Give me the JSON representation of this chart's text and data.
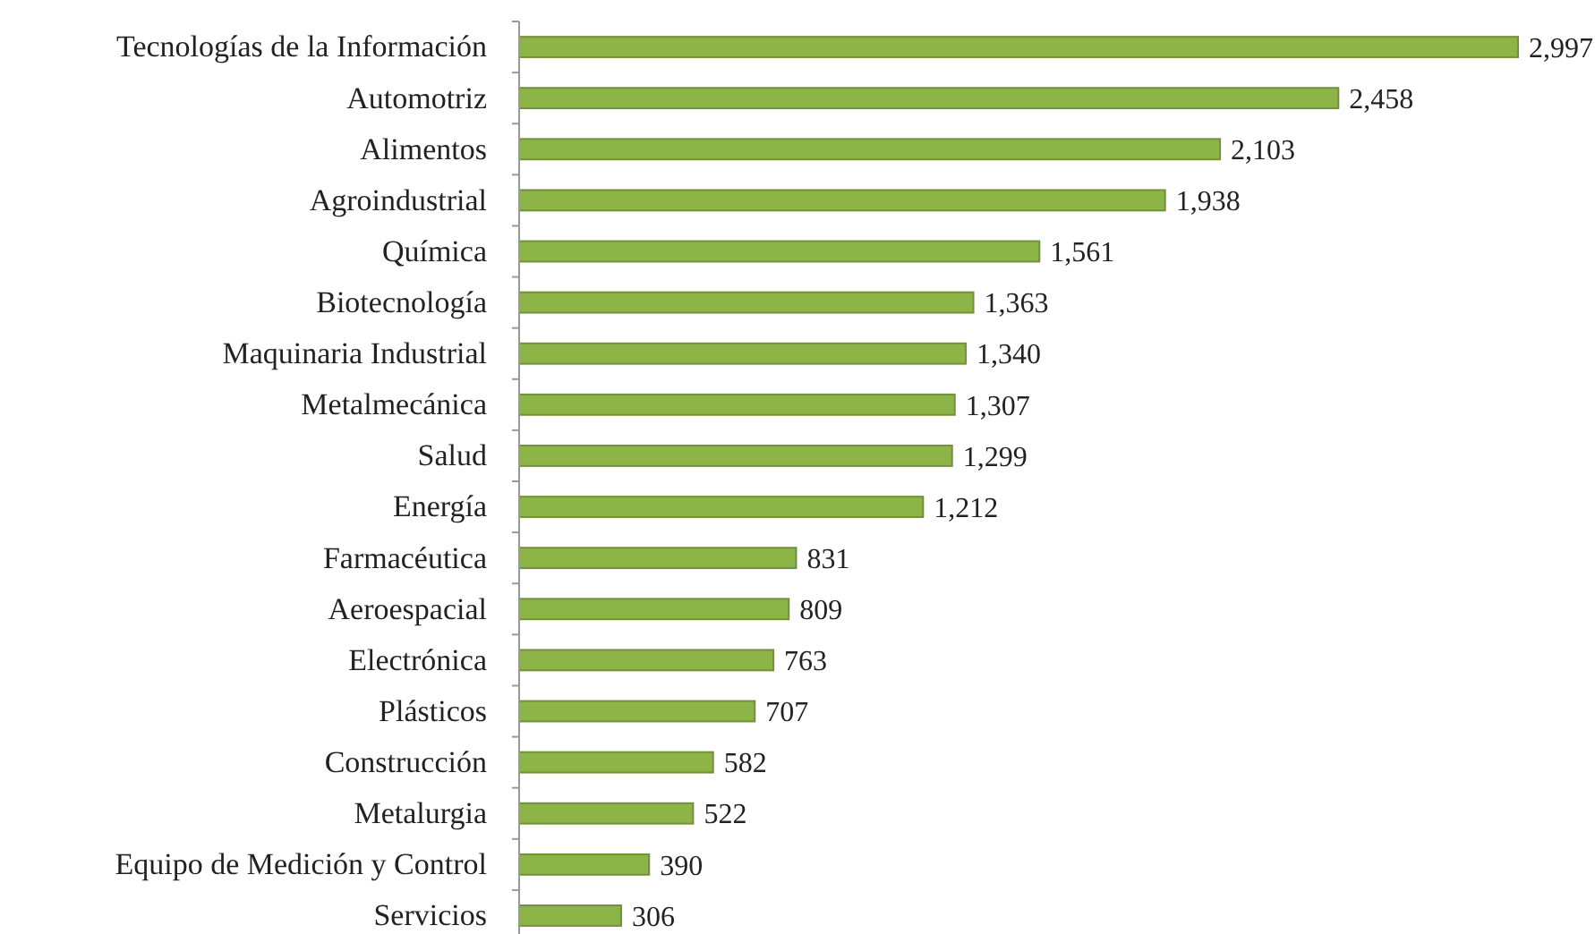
{
  "chart_data": {
    "type": "bar",
    "orientation": "horizontal",
    "categories": [
      "Tecnologías de la Información",
      "Automotriz",
      "Alimentos",
      "Agroindustrial",
      "Química",
      "Biotecnología",
      "Maquinaria Industrial",
      "Metalmecánica",
      "Salud",
      "Energía",
      "Farmacéutica",
      "Aeroespacial",
      "Electrónica",
      "Plásticos",
      "Construcción",
      "Metalurgia",
      "Equipo de Medición y Control",
      "Servicios"
    ],
    "values": [
      2997,
      2458,
      2103,
      1938,
      1561,
      1363,
      1340,
      1307,
      1299,
      1212,
      831,
      809,
      763,
      707,
      582,
      522,
      390,
      306
    ],
    "value_labels": [
      "2,997",
      "2,458",
      "2,103",
      "1,938",
      "1,561",
      "1,363",
      "1,340",
      "1,307",
      "1,299",
      "1,212",
      "831",
      "809",
      "763",
      "707",
      "582",
      "522",
      "390",
      "306"
    ],
    "color": "#8db446"
  }
}
